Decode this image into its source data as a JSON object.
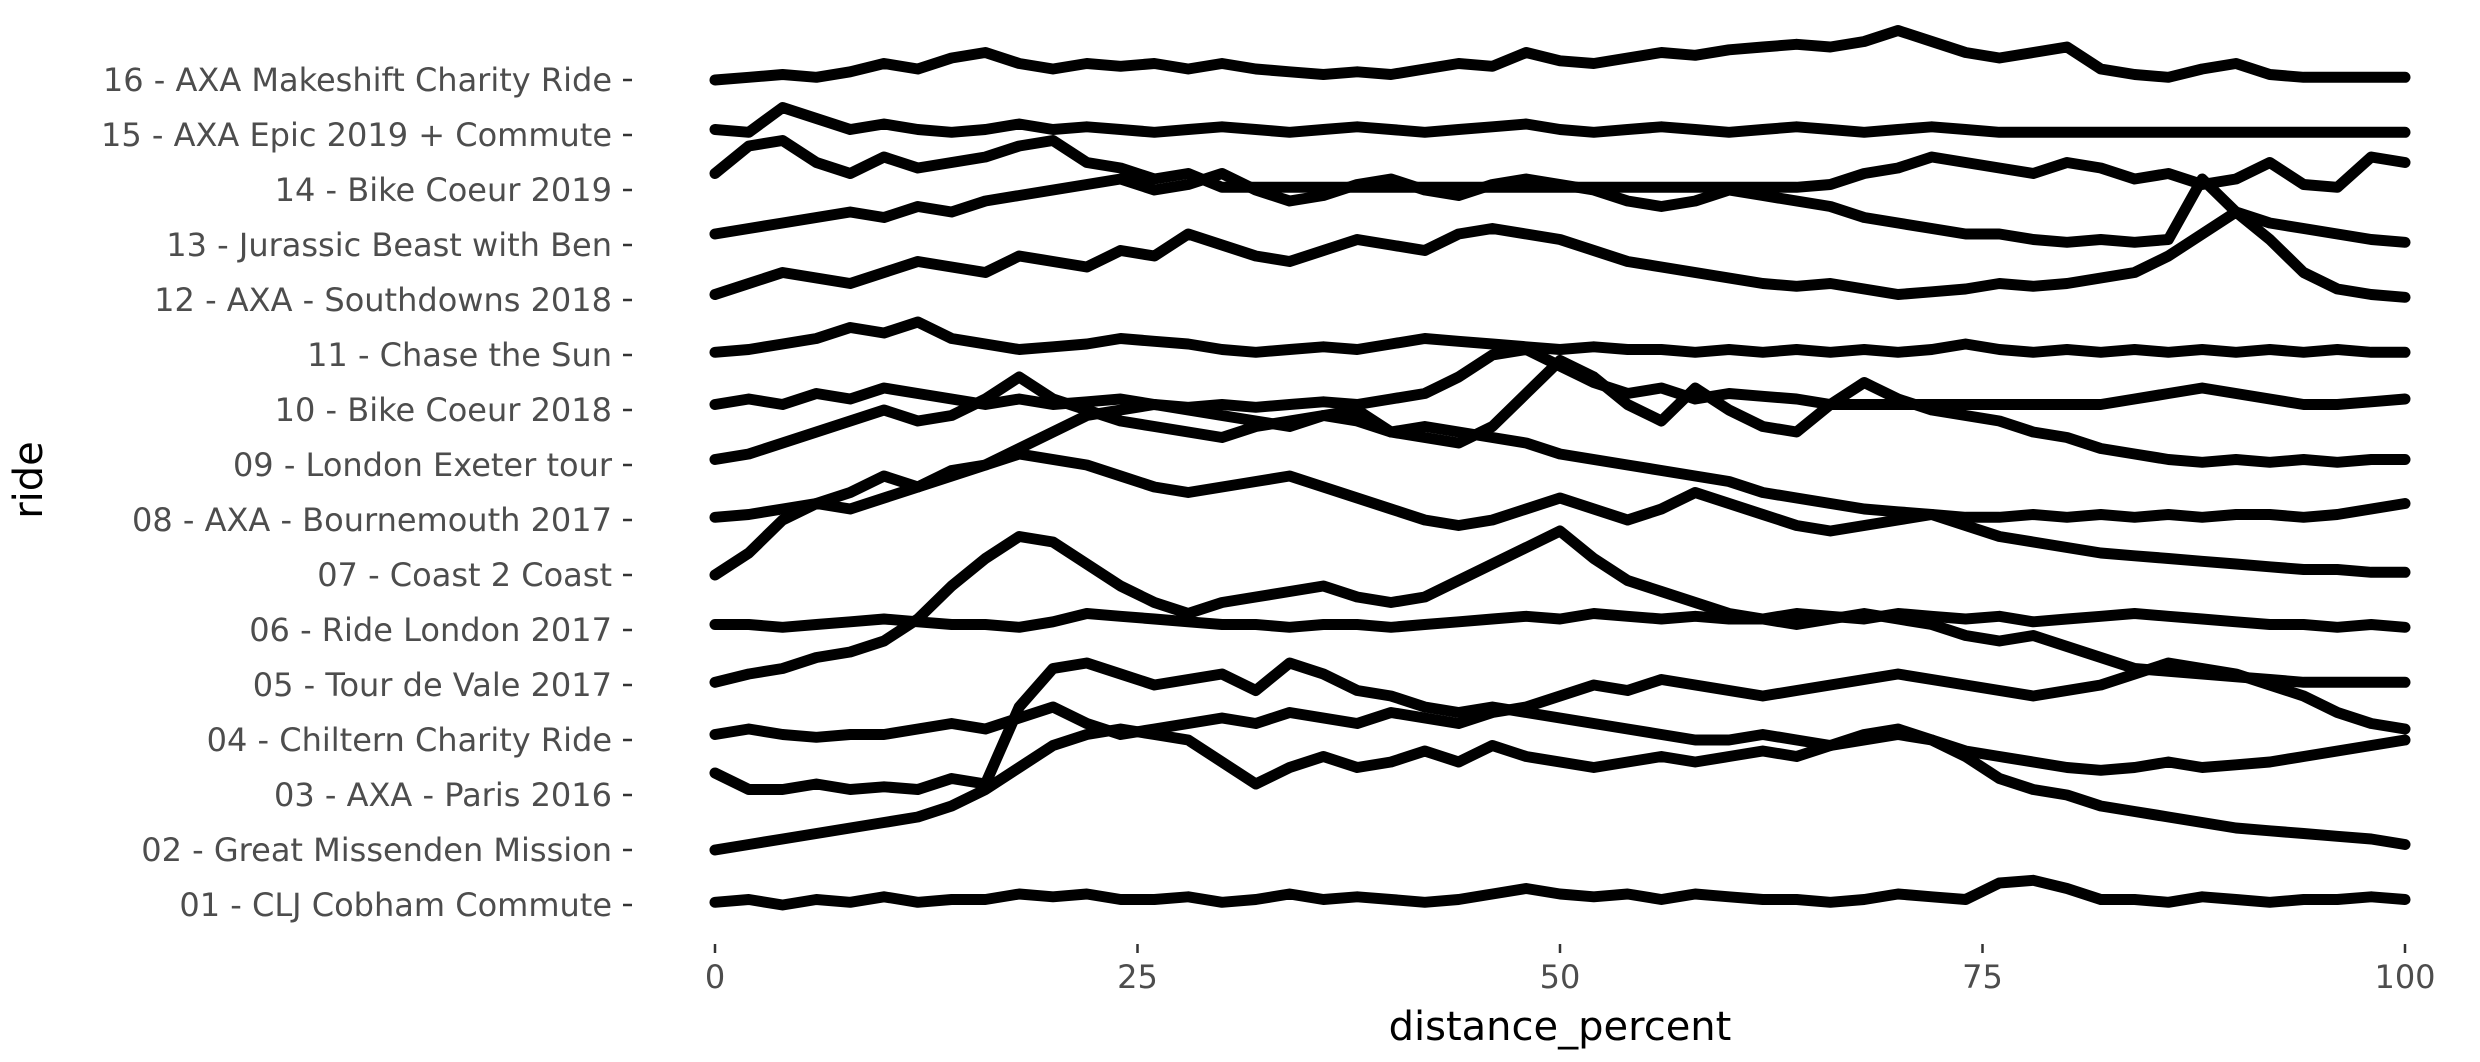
{
  "chart_data": {
    "type": "line",
    "subtype": "ridgeline",
    "title": "",
    "xlabel": "distance_percent",
    "ylabel": "ride",
    "xlim": [
      0,
      100
    ],
    "x_ticks": [
      0,
      25,
      50,
      75,
      100
    ],
    "grid": false,
    "legend": "none",
    "line_color": "#000000",
    "x": [
      0,
      2,
      4,
      6,
      8,
      10,
      12,
      14,
      16,
      18,
      20,
      22,
      24,
      26,
      28,
      30,
      32,
      34,
      36,
      38,
      40,
      42,
      44,
      46,
      48,
      50,
      52,
      54,
      56,
      58,
      60,
      62,
      64,
      66,
      68,
      70,
      72,
      74,
      76,
      78,
      80,
      82,
      84,
      86,
      88,
      90,
      92,
      94,
      96,
      98,
      100
    ],
    "series": [
      {
        "name": "01 - CLJ Cobham Commute",
        "values": [
          0.05,
          0.1,
          0,
          0.1,
          0.05,
          0.15,
          0.05,
          0.1,
          0.1,
          0.2,
          0.15,
          0.2,
          0.1,
          0.1,
          0.15,
          0.05,
          0.1,
          0.2,
          0.1,
          0.15,
          0.1,
          0.05,
          0.1,
          0.2,
          0.3,
          0.2,
          0.15,
          0.2,
          0.1,
          0.2,
          0.15,
          0.1,
          0.1,
          0.05,
          0.1,
          0.2,
          0.15,
          0.1,
          0.4,
          0.45,
          0.3,
          0.1,
          0.1,
          0.05,
          0.15,
          0.1,
          0.05,
          0.1,
          0.1,
          0.15,
          0.1
        ]
      },
      {
        "name": "02 - Great Missenden Mission",
        "values": [
          0,
          0.1,
          0.2,
          0.3,
          0.4,
          0.5,
          0.6,
          0.8,
          1.1,
          1.5,
          1.9,
          2.1,
          2.2,
          2.1,
          2.0,
          1.6,
          1.2,
          1.5,
          1.7,
          1.5,
          1.6,
          1.8,
          1.6,
          1.9,
          1.7,
          1.6,
          1.5,
          1.6,
          1.7,
          1.6,
          1.7,
          1.8,
          1.7,
          1.9,
          2.0,
          2.1,
          2.0,
          1.7,
          1.3,
          1.1,
          1.0,
          0.8,
          0.7,
          0.6,
          0.5,
          0.4,
          0.35,
          0.3,
          0.25,
          0.2,
          0.1
        ]
      },
      {
        "name": "03 - AXA - Paris 2016",
        "values": [
          0.4,
          0.1,
          0.1,
          0.2,
          0.1,
          0.15,
          0.1,
          0.3,
          0.2,
          1.6,
          2.3,
          2.4,
          2.2,
          2.0,
          2.1,
          2.2,
          1.9,
          2.4,
          2.2,
          1.9,
          1.8,
          1.6,
          1.5,
          1.6,
          1.5,
          1.4,
          1.3,
          1.2,
          1.1,
          1.0,
          1.0,
          1.1,
          1.0,
          0.9,
          1.1,
          1.2,
          1.0,
          0.8,
          0.7,
          0.6,
          0.5,
          0.45,
          0.5,
          0.6,
          0.5,
          0.55,
          0.6,
          0.7,
          0.8,
          0.9,
          1.0
        ]
      },
      {
        "name": "04 - Chiltern Charity Ride",
        "values": [
          0.1,
          0.2,
          0.1,
          0.05,
          0.1,
          0.1,
          0.2,
          0.3,
          0.2,
          0.4,
          0.6,
          0.3,
          0.1,
          0.2,
          0.3,
          0.4,
          0.3,
          0.5,
          0.4,
          0.3,
          0.5,
          0.4,
          0.3,
          0.5,
          0.6,
          0.8,
          1.0,
          0.9,
          1.1,
          1.0,
          0.9,
          0.8,
          0.9,
          1.0,
          1.1,
          1.2,
          1.1,
          1.0,
          0.9,
          0.8,
          0.9,
          1.0,
          1.2,
          1.4,
          1.3,
          1.2,
          1.0,
          0.8,
          0.5,
          0.3,
          0.2
        ]
      },
      {
        "name": "05 - Tour de Vale 2017",
        "values": [
          0.05,
          0.2,
          0.3,
          0.5,
          0.6,
          0.8,
          1.2,
          1.8,
          2.3,
          2.7,
          2.6,
          2.2,
          1.8,
          1.5,
          1.3,
          1.5,
          1.6,
          1.7,
          1.8,
          1.6,
          1.5,
          1.6,
          1.9,
          2.2,
          2.5,
          2.8,
          2.3,
          1.9,
          1.7,
          1.5,
          1.3,
          1.2,
          1.1,
          1.2,
          1.3,
          1.2,
          1.1,
          0.9,
          0.8,
          0.9,
          0.7,
          0.5,
          0.3,
          0.25,
          0.2,
          0.15,
          0.1,
          0.05,
          0.05,
          0.05,
          0.05
        ]
      },
      {
        "name": "06 - Ride London 2017",
        "values": [
          0.1,
          0.1,
          0.05,
          0.1,
          0.15,
          0.2,
          0.15,
          0.1,
          0.1,
          0.05,
          0.15,
          0.3,
          0.25,
          0.2,
          0.15,
          0.1,
          0.1,
          0.05,
          0.1,
          0.1,
          0.05,
          0.1,
          0.15,
          0.2,
          0.25,
          0.2,
          0.3,
          0.25,
          0.2,
          0.25,
          0.2,
          0.2,
          0.3,
          0.25,
          0.2,
          0.3,
          0.25,
          0.2,
          0.25,
          0.15,
          0.2,
          0.25,
          0.3,
          0.25,
          0.2,
          0.15,
          0.1,
          0.1,
          0.05,
          0.1,
          0.05
        ]
      },
      {
        "name": "07 - Coast 2 Coast",
        "values": [
          0,
          0.4,
          1.0,
          1.3,
          1.5,
          1.8,
          1.6,
          1.9,
          2.0,
          2.2,
          2.1,
          2.0,
          1.8,
          1.6,
          1.5,
          1.6,
          1.7,
          1.8,
          1.6,
          1.4,
          1.2,
          1.0,
          0.9,
          1.0,
          1.2,
          1.4,
          1.2,
          1.0,
          1.2,
          1.5,
          1.3,
          1.1,
          0.9,
          0.8,
          0.9,
          1.0,
          1.1,
          0.9,
          0.7,
          0.6,
          0.5,
          0.4,
          0.35,
          0.3,
          0.25,
          0.2,
          0.15,
          0.1,
          0.1,
          0.05,
          0.05
        ]
      },
      {
        "name": "08 - AXA - Bournemouth 2017",
        "values": [
          0.05,
          0.1,
          0.2,
          0.3,
          0.2,
          0.4,
          0.6,
          0.8,
          1.0,
          1.3,
          1.6,
          1.9,
          2.0,
          2.1,
          2.0,
          1.9,
          1.8,
          1.7,
          1.9,
          1.8,
          1.6,
          1.7,
          1.6,
          1.5,
          1.4,
          1.2,
          1.1,
          1.0,
          0.9,
          0.8,
          0.7,
          0.5,
          0.4,
          0.3,
          0.2,
          0.15,
          0.1,
          0.05,
          0.05,
          0.1,
          0.05,
          0.1,
          0.05,
          0.1,
          0.05,
          0.1,
          0.1,
          0.05,
          0.1,
          0.2,
          0.3
        ]
      },
      {
        "name": "09 - London Exeter tour",
        "values": [
          0.1,
          0.2,
          0.4,
          0.6,
          0.8,
          1.0,
          0.8,
          0.9,
          1.2,
          1.6,
          1.2,
          1.0,
          0.8,
          0.7,
          0.6,
          0.5,
          0.7,
          0.8,
          0.9,
          1.0,
          0.6,
          0.5,
          0.4,
          0.7,
          1.3,
          1.9,
          1.6,
          1.1,
          0.8,
          1.4,
          1.0,
          0.7,
          0.6,
          1.1,
          1.5,
          1.2,
          1.0,
          0.9,
          0.8,
          0.6,
          0.5,
          0.3,
          0.2,
          0.1,
          0.05,
          0.1,
          0.05,
          0.1,
          0.05,
          0.1,
          0.1
        ]
      },
      {
        "name": "10 - Bike Coeur 2018",
        "values": [
          0.1,
          0.2,
          0.1,
          0.3,
          0.2,
          0.4,
          0.3,
          0.2,
          0.1,
          0.2,
          0.1,
          0.15,
          0.2,
          0.1,
          0.05,
          0.1,
          0.05,
          0.1,
          0.15,
          0.1,
          0.2,
          0.3,
          0.6,
          1.0,
          1.1,
          0.8,
          0.5,
          0.3,
          0.4,
          0.2,
          0.3,
          0.25,
          0.2,
          0.1,
          0.1,
          0.1,
          0.1,
          0.1,
          0.1,
          0.1,
          0.1,
          0.1,
          0.2,
          0.3,
          0.4,
          0.3,
          0.2,
          0.1,
          0.1,
          0.15,
          0.2
        ]
      },
      {
        "name": "11 - Chase the Sun",
        "values": [
          0.05,
          0.1,
          0.2,
          0.3,
          0.5,
          0.4,
          0.6,
          0.3,
          0.2,
          0.1,
          0.15,
          0.2,
          0.3,
          0.25,
          0.2,
          0.1,
          0.05,
          0.1,
          0.15,
          0.1,
          0.2,
          0.3,
          0.25,
          0.2,
          0.15,
          0.1,
          0.15,
          0.1,
          0.1,
          0.05,
          0.1,
          0.05,
          0.1,
          0.05,
          0.1,
          0.05,
          0.1,
          0.2,
          0.1,
          0.05,
          0.1,
          0.05,
          0.1,
          0.05,
          0.1,
          0.05,
          0.1,
          0.05,
          0.1,
          0.05,
          0.05
        ]
      },
      {
        "name": "12 - AXA - Southdowns 2018",
        "values": [
          0.1,
          0.3,
          0.5,
          0.4,
          0.3,
          0.5,
          0.7,
          0.6,
          0.5,
          0.8,
          0.7,
          0.6,
          0.9,
          0.8,
          1.2,
          1.0,
          0.8,
          0.7,
          0.9,
          1.1,
          1.0,
          0.9,
          1.2,
          1.3,
          1.2,
          1.1,
          0.9,
          0.7,
          0.6,
          0.5,
          0.4,
          0.3,
          0.25,
          0.3,
          0.2,
          0.1,
          0.15,
          0.2,
          0.3,
          0.25,
          0.3,
          0.4,
          0.5,
          0.8,
          1.2,
          1.6,
          1.1,
          0.5,
          0.2,
          0.1,
          0.05
        ]
      },
      {
        "name": "13 - Jurassic Beast with Ben",
        "values": [
          0.2,
          0.3,
          0.4,
          0.5,
          0.6,
          0.5,
          0.7,
          0.6,
          0.8,
          0.9,
          1.0,
          1.1,
          1.2,
          1.0,
          1.1,
          1.3,
          1.0,
          0.8,
          0.9,
          1.1,
          1.2,
          1.0,
          0.9,
          1.1,
          1.2,
          1.1,
          1.0,
          0.8,
          0.7,
          0.8,
          1.0,
          0.9,
          0.8,
          0.7,
          0.5,
          0.4,
          0.3,
          0.2,
          0.2,
          0.1,
          0.05,
          0.1,
          0.05,
          0.1,
          1.2,
          0.6,
          0.4,
          0.3,
          0.2,
          0.1,
          0.05
        ]
      },
      {
        "name": "14 - Bike Coeur 2019",
        "values": [
          0.3,
          0.8,
          0.9,
          0.5,
          0.3,
          0.6,
          0.4,
          0.5,
          0.6,
          0.8,
          0.9,
          0.5,
          0.4,
          0.2,
          0.3,
          0.05,
          0.05,
          0.05,
          0.05,
          0.05,
          0.05,
          0.05,
          0.05,
          0.05,
          0.05,
          0.05,
          0.05,
          0.05,
          0.05,
          0.05,
          0.05,
          0.05,
          0.05,
          0.1,
          0.3,
          0.4,
          0.6,
          0.5,
          0.4,
          0.3,
          0.5,
          0.4,
          0.2,
          0.3,
          0.1,
          0.2,
          0.5,
          0.1,
          0.05,
          0.6,
          0.5
        ]
      },
      {
        "name": "15 - AXA Epic 2019 + Commute",
        "values": [
          0.1,
          0.05,
          0.5,
          0.3,
          0.1,
          0.2,
          0.1,
          0.05,
          0.1,
          0.2,
          0.1,
          0.15,
          0.1,
          0.05,
          0.1,
          0.15,
          0.1,
          0.05,
          0.1,
          0.15,
          0.1,
          0.05,
          0.1,
          0.15,
          0.2,
          0.1,
          0.05,
          0.1,
          0.15,
          0.1,
          0.05,
          0.1,
          0.15,
          0.1,
          0.05,
          0.1,
          0.15,
          0.1,
          0.05,
          0.05,
          0.05,
          0.05,
          0.05,
          0.05,
          0.05,
          0.05,
          0.05,
          0.05,
          0.05,
          0.05,
          0.05
        ]
      },
      {
        "name": "16 - AXA Makeshift Charity Ride",
        "values": [
          0,
          0.05,
          0.1,
          0.05,
          0.15,
          0.3,
          0.2,
          0.4,
          0.5,
          0.3,
          0.2,
          0.3,
          0.25,
          0.3,
          0.2,
          0.3,
          0.2,
          0.15,
          0.1,
          0.15,
          0.1,
          0.2,
          0.3,
          0.25,
          0.5,
          0.35,
          0.3,
          0.4,
          0.5,
          0.45,
          0.55,
          0.6,
          0.65,
          0.6,
          0.7,
          0.9,
          0.7,
          0.5,
          0.4,
          0.5,
          0.6,
          0.2,
          0.1,
          0.05,
          0.2,
          0.3,
          0.1,
          0.05,
          0.05,
          0.05,
          0.05
        ]
      }
    ]
  }
}
